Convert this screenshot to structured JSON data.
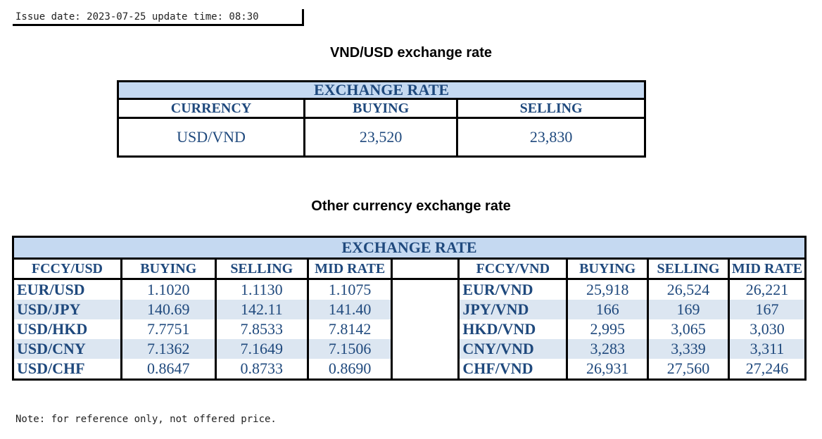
{
  "issue": {
    "text": "Issue date: 2023-07-25 update time: 08:30"
  },
  "section1": {
    "title": "VND/USD exchange rate",
    "table_title": "EXCHANGE RATE",
    "headers": [
      "CURRENCY",
      "BUYING",
      "SELLING"
    ],
    "row": {
      "currency": "USD/VND",
      "buying": "23,520",
      "selling": "23,830"
    }
  },
  "section2": {
    "title": "Other currency exchange rate",
    "table_title": "EXCHANGE  RATE",
    "left_headers": [
      "FCCY/USD",
      "BUYING",
      "SELLING",
      "MID RATE"
    ],
    "right_headers": [
      "FCCY/VND",
      "BUYING",
      "SELLING",
      "MID RATE"
    ],
    "left_rows": [
      {
        "pair": "EUR/USD",
        "buying": "1.1020",
        "selling": "1.1130",
        "mid": "1.1075"
      },
      {
        "pair": "USD/JPY",
        "buying": "140.69",
        "selling": "142.11",
        "mid": "141.40"
      },
      {
        "pair": "USD/HKD",
        "buying": "7.7751",
        "selling": "7.8533",
        "mid": "7.8142"
      },
      {
        "pair": "USD/CNY",
        "buying": "7.1362",
        "selling": "7.1649",
        "mid": "7.1506"
      },
      {
        "pair": "USD/CHF",
        "buying": "0.8647",
        "selling": "0.8733",
        "mid": "0.8690"
      }
    ],
    "right_rows": [
      {
        "pair": "EUR/VND",
        "buying": "25,918",
        "selling": "26,524",
        "mid": "26,221"
      },
      {
        "pair": "JPY/VND",
        "buying": "166",
        "selling": "169",
        "mid": "167"
      },
      {
        "pair": "HKD/VND",
        "buying": "2,995",
        "selling": "3,065",
        "mid": "3,030"
      },
      {
        "pair": "CNY/VND",
        "buying": "3,283",
        "selling": "3,339",
        "mid": "3,311"
      },
      {
        "pair": "CHF/VND",
        "buying": "26,931",
        "selling": "27,560",
        "mid": "27,246"
      }
    ]
  },
  "note": {
    "text": "Note: for reference only, not offered price."
  },
  "colors": {
    "header_bg": "#c5d9f1",
    "row_alt_bg": "#dce6f1",
    "text_blue": "#1f497d"
  }
}
